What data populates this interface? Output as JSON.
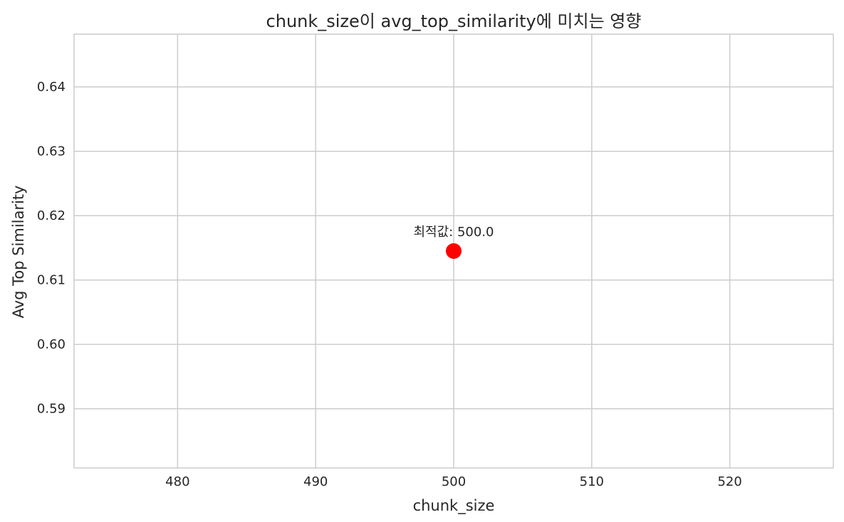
{
  "chart_data": {
    "type": "scatter",
    "title": "chunk_size이 avg_top_similarity에 미치는 영향",
    "xlabel": "chunk_size",
    "ylabel": "Avg Top Similarity",
    "xlim": [
      472.5,
      527.5
    ],
    "ylim": [
      0.5808,
      0.6482
    ],
    "x_ticks": [
      480,
      490,
      500,
      510,
      520
    ],
    "x_tick_labels": [
      "480",
      "490",
      "500",
      "510",
      "520"
    ],
    "y_ticks": [
      0.59,
      0.6,
      0.61,
      0.62,
      0.63,
      0.64
    ],
    "y_tick_labels": [
      "0.59",
      "0.60",
      "0.61",
      "0.62",
      "0.63",
      "0.64"
    ],
    "grid": true,
    "points": [
      {
        "x": 500,
        "y": 0.6145
      }
    ],
    "point_color": "#ff0000",
    "annotations": [
      {
        "text": "최적값: 500.0",
        "x": 500,
        "y": 0.6145
      }
    ]
  }
}
